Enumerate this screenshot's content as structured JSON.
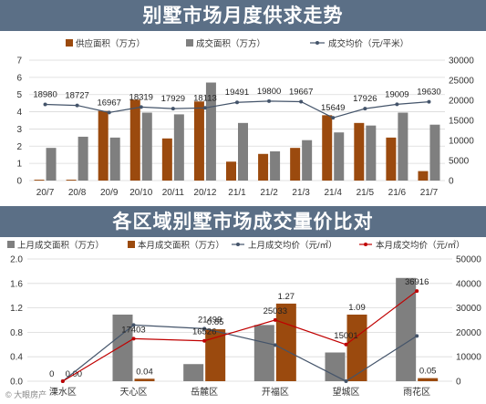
{
  "banner1": {
    "title": "别墅市场月度供求走势"
  },
  "banner2": {
    "title": "各区域别墅市场成交量价比对"
  },
  "colors": {
    "supply": "#9b4a0e",
    "deal": "#7f7f7f",
    "price1": "#44546a",
    "prev_price": "#44546a",
    "cur_price": "#c00000",
    "banner": "#5b6f86"
  },
  "chart_data": [
    {
      "type": "bar",
      "categories": [
        "20/7",
        "20/8",
        "20/9",
        "20/10",
        "20/11",
        "20/12",
        "21/1",
        "21/2",
        "21/3",
        "21/4",
        "21/5",
        "21/6",
        "21/7"
      ],
      "series": [
        {
          "name": "供应面积（万方）",
          "kind": "bar",
          "axis": "left",
          "values": [
            0.05,
            0.05,
            4.05,
            4.7,
            2.45,
            4.6,
            1.1,
            1.55,
            1.9,
            3.8,
            3.35,
            2.5,
            0.55
          ]
        },
        {
          "name": "成交面积（万方）",
          "kind": "bar",
          "axis": "left",
          "values": [
            1.9,
            2.55,
            2.5,
            3.95,
            3.85,
            5.7,
            3.35,
            1.7,
            2.35,
            2.8,
            3.2,
            3.95,
            3.25
          ]
        },
        {
          "name": "成交均价（元/平米）",
          "kind": "line",
          "axis": "right",
          "values": [
            18980,
            18727,
            16967,
            18319,
            17929,
            18113,
            19491,
            19800,
            19667,
            15649,
            17926,
            19009,
            19630
          ]
        }
      ],
      "ylim": [
        0,
        7
      ],
      "y_ticks": [
        "0",
        "1",
        "2",
        "3",
        "4",
        "5",
        "6",
        "7"
      ],
      "y2lim": [
        0,
        30000
      ],
      "y2_ticks": [
        "0",
        "5000",
        "10000",
        "15000",
        "20000",
        "25000",
        "30000"
      ],
      "price_labels": [
        "18980",
        "18727",
        "16967",
        "18319",
        "17929",
        "18113",
        "19491",
        "19800",
        "19667",
        "15649",
        "17926",
        "19009",
        "19630"
      ],
      "grid": true,
      "legend": "top"
    },
    {
      "type": "bar",
      "categories": [
        "溧水区",
        "天心区",
        "岳麓区",
        "开福区",
        "望城区",
        "雨花区"
      ],
      "series": [
        {
          "name": "上月成交面积（万方）",
          "kind": "bar",
          "axis": "left",
          "values": [
            0.0,
            1.09,
            0.28,
            0.92,
            0.47,
            1.69
          ]
        },
        {
          "name": "本月成交面积（万方）",
          "kind": "bar",
          "axis": "left",
          "values": [
            0.0,
            0.04,
            0.85,
            1.27,
            1.09,
            0.05
          ]
        },
        {
          "name": "上月成交均价（元/㎡）",
          "kind": "line",
          "axis": "right",
          "values": [
            0,
            23000,
            21499,
            14800,
            0,
            18500
          ]
        },
        {
          "name": "本月成交均价（元/㎡）",
          "kind": "line",
          "axis": "right",
          "values": [
            0,
            17403,
            16526,
            25033,
            15001,
            36916
          ]
        }
      ],
      "ylim": [
        0,
        2.0
      ],
      "y_ticks": [
        "0.0",
        "0.4",
        "0.8",
        "1.2",
        "1.6",
        "2.0"
      ],
      "y2lim": [
        0,
        50000
      ],
      "y2_ticks": [
        "0",
        "10000",
        "20000",
        "30000",
        "40000",
        "50000"
      ],
      "bar_labels_prev": [
        "0",
        "",
        "",
        "",
        "",
        ""
      ],
      "bar_labels_cur": [
        "0.00",
        "0.04",
        "0.85",
        "1.27",
        "1.09",
        "0.05"
      ],
      "price_labels_cur": [
        "",
        "17403",
        "16526",
        "25033",
        "15001",
        "36916"
      ],
      "price_labels_prev": [
        "",
        "",
        "21499",
        "",
        "",
        ""
      ],
      "grid": true,
      "legend": "top"
    }
  ],
  "footer": {
    "watermark": "© 大眼房产"
  }
}
